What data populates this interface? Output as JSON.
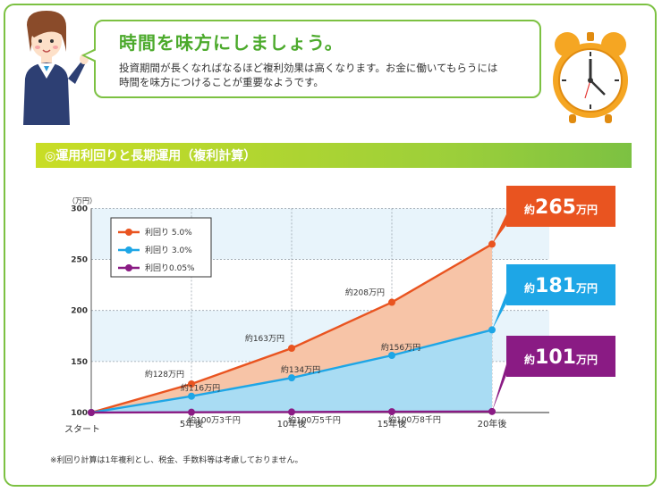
{
  "header": {
    "title": "時間を味方にしましょう。",
    "body_line1": "投資期間が長くなればなるほど複利効果は高くなります。お金に働いてもらうには",
    "body_line2": "時間を味方につけることが重要なようです。"
  },
  "section": {
    "title": "◎運用利回りと長期運用（複利計算）"
  },
  "footnote": "※利回り計算は1年複利とし、税金、手数料等は考慮しておりません。",
  "colors": {
    "green": "#7cc142",
    "orange": "#e95420",
    "blue": "#1ea6e6",
    "purple": "#8a1b84"
  },
  "chart_data": {
    "type": "area",
    "x": [
      "スタート",
      "5年後",
      "10年後",
      "15年後",
      "20年後"
    ],
    "y_unit": "（万円）",
    "ylim": [
      100,
      300
    ],
    "yticks": [
      100,
      150,
      200,
      250,
      300
    ],
    "grid": true,
    "legend_position": "top-left",
    "series": [
      {
        "name": "利回り 5.0%",
        "color": "#e95420",
        "fill": "#f7c4a7",
        "values": [
          100,
          128,
          163,
          208,
          265
        ],
        "point_labels": [
          "",
          "約128万円",
          "約163万円",
          "約208万円",
          ""
        ],
        "end_prefix": "約",
        "end_value": "265",
        "end_unit": "万円"
      },
      {
        "name": "利回り 3.0%",
        "color": "#1ea6e6",
        "fill": "#a9dcf3",
        "values": [
          100,
          116,
          134,
          156,
          181
        ],
        "point_labels": [
          "",
          "約116万円",
          "約134万円",
          "約156万円",
          ""
        ],
        "end_prefix": "約",
        "end_value": "181",
        "end_unit": "万円"
      },
      {
        "name": "利回り0.05%",
        "color": "#8a1b84",
        "fill": "#e6c9e3",
        "values": [
          100,
          100.3,
          100.5,
          100.8,
          101
        ],
        "point_labels": [
          "",
          "約100万3千円",
          "約100万5千円",
          "約100万8千円",
          ""
        ],
        "end_prefix": "約",
        "end_value": "101",
        "end_unit": "万円"
      }
    ]
  }
}
